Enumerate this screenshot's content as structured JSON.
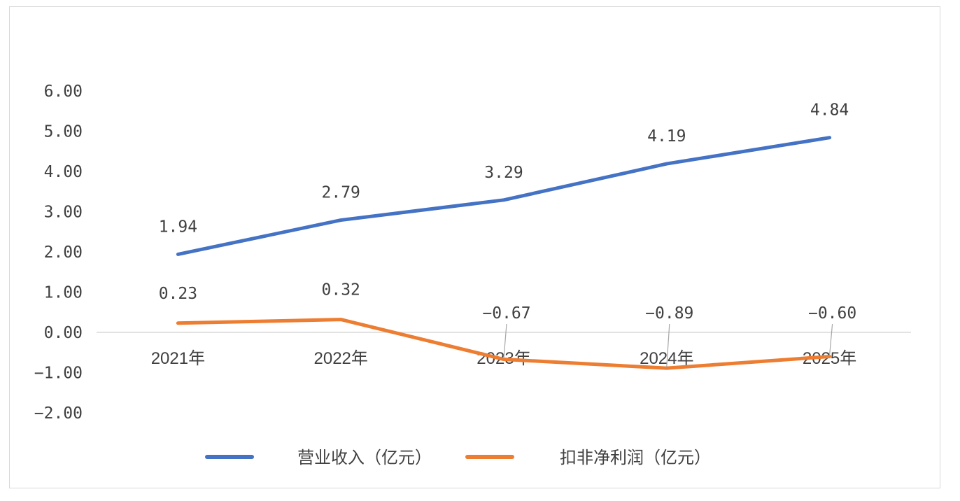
{
  "chart_data": {
    "type": "line",
    "categories": [
      "2021年",
      "2022年",
      "2023年",
      "2024年",
      "2025年"
    ],
    "y_ticks": [
      "-2.00",
      "-1.00",
      "0.00",
      "1.00",
      "2.00",
      "3.00",
      "4.00",
      "5.00",
      "6.00"
    ],
    "ylim": [
      -2,
      6
    ],
    "grid": false,
    "legend_position": "bottom",
    "series": [
      {
        "name": "营业收入（亿元）",
        "color": "#4472C4",
        "values": [
          1.94,
          2.79,
          3.29,
          4.19,
          4.84
        ],
        "labels": [
          "1.94",
          "2.79",
          "3.29",
          "4.19",
          "4.84"
        ]
      },
      {
        "name": "扣非净利润（亿元）",
        "color": "#ED7D31",
        "values": [
          0.23,
          0.32,
          -0.67,
          -0.89,
          -0.6
        ],
        "labels": [
          "0.23",
          "0.32",
          "−0.67",
          "−0.89",
          "−0.60"
        ]
      }
    ]
  }
}
